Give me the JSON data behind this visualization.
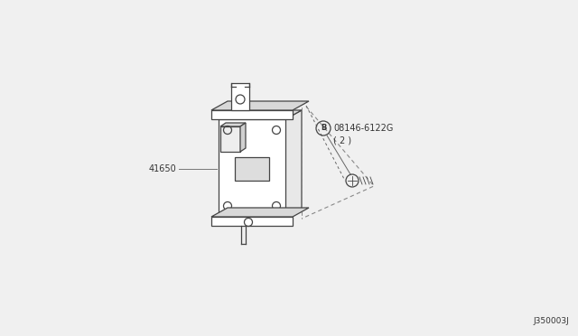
{
  "bg_color": "#f0f0f0",
  "line_color": "#444444",
  "text_color": "#333333",
  "part_number_41650": "41650",
  "part_number_bolt": "08146-6122G",
  "part_number_bolt_qty": "( 2 )",
  "part_letter_bolt": "B",
  "diagram_code": "J350003J",
  "font_size_part": 7.0,
  "font_size_code": 6.5
}
